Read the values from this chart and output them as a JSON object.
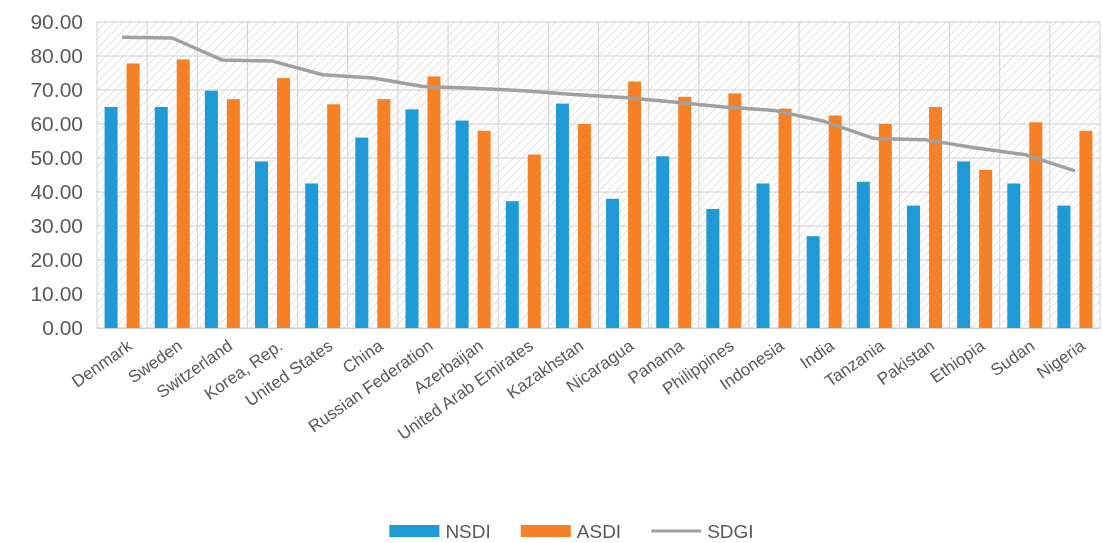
{
  "chart_data": {
    "type": "bar",
    "categories": [
      "Denmark",
      "Sweden",
      "Switzerland",
      "Korea, Rep.",
      "United States",
      "China",
      "Russian Federation",
      "Azerbaijan",
      "United Arab Emirates",
      "Kazakhstan",
      "Nicaragua",
      "Panama",
      "Philippines",
      "Indonesia",
      "India",
      "Tanzania",
      "Pakistan",
      "Ethiopia",
      "Sudan",
      "Nigeria"
    ],
    "series": [
      {
        "name": "NSDI",
        "color": "#1f9ad6",
        "values": [
          65,
          65,
          69.8,
          49,
          42.5,
          56,
          64.3,
          61,
          37.3,
          66,
          38,
          50.5,
          35,
          42.5,
          27,
          43,
          36,
          49,
          42.5,
          36
        ]
      },
      {
        "name": "ASDI",
        "color": "#f58025",
        "values": [
          77.8,
          79,
          67.3,
          73.5,
          65.8,
          67.3,
          74,
          58,
          51,
          60,
          72.5,
          68,
          69,
          64.5,
          62.5,
          60,
          65,
          46.5,
          60.5,
          58
        ]
      },
      {
        "name": "SDGI",
        "type": "line",
        "color": "#a0a0a0",
        "values": [
          85.5,
          85.3,
          78.8,
          78.5,
          74.5,
          73.5,
          71,
          70.5,
          69.8,
          68.7,
          67.8,
          66.5,
          65,
          64,
          60.8,
          55.7,
          55.4,
          53,
          51,
          46.2
        ]
      }
    ],
    "ylim": [
      0,
      90
    ],
    "yticks": [
      {
        "value": 0,
        "label": "0.00"
      },
      {
        "value": 10,
        "label": "10.00"
      },
      {
        "value": 20,
        "label": "20.00"
      },
      {
        "value": 30,
        "label": "30.00"
      },
      {
        "value": 40,
        "label": "40.00"
      },
      {
        "value": 50,
        "label": "50.00"
      },
      {
        "value": 60,
        "label": "60.00"
      },
      {
        "value": 70,
        "label": "70.00"
      },
      {
        "value": 80,
        "label": "80.00"
      },
      {
        "value": 90,
        "label": "90.00"
      }
    ],
    "grid": true,
    "legend": "bottom",
    "marker": "none",
    "line_style": "solid"
  }
}
